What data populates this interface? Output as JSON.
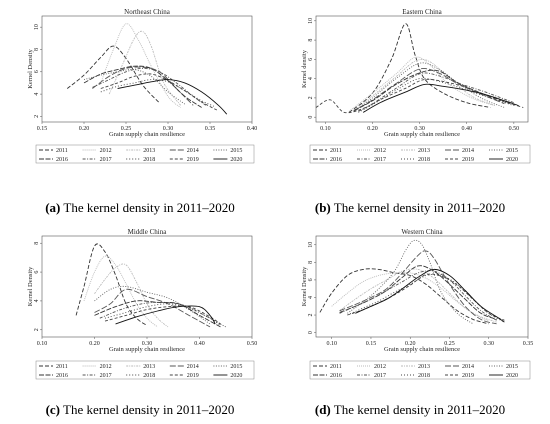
{
  "chart_data": [
    {
      "type": "line",
      "panel": "a",
      "title": "Northeast China",
      "xlabel": "Grain supply chain resilience",
      "ylabel": "Kernel Density",
      "xlim": [
        0.15,
        0.4
      ],
      "ylim": [
        1.5,
        11
      ],
      "xticks": [
        0.15,
        0.2,
        0.25,
        0.3,
        0.35,
        0.4
      ],
      "yticks": [
        2,
        4,
        6,
        8,
        10
      ],
      "caption": {
        "letter": "(a)",
        "text": " The kernel density in 2011–2020"
      },
      "series": [
        {
          "name": "2011",
          "x": [
            0.18,
            0.2,
            0.22,
            0.235,
            0.25,
            0.27,
            0.29
          ],
          "y": [
            4.5,
            5.7,
            7.3,
            8.3,
            7.2,
            4.8,
            3.2
          ]
        },
        {
          "name": "2012",
          "x": [
            0.22,
            0.235,
            0.25,
            0.265,
            0.28,
            0.3,
            0.315
          ],
          "y": [
            5.0,
            8.0,
            10.3,
            8.8,
            6.5,
            3.8,
            2.8
          ]
        },
        {
          "name": "2013",
          "x": [
            0.23,
            0.245,
            0.26,
            0.27,
            0.28,
            0.295,
            0.315
          ],
          "y": [
            4.0,
            6.5,
            9.0,
            9.6,
            8.3,
            5.0,
            3.0
          ]
        },
        {
          "name": "2014",
          "x": [
            0.21,
            0.23,
            0.25,
            0.27,
            0.29,
            0.31,
            0.33
          ],
          "y": [
            4.5,
            5.6,
            6.3,
            6.4,
            6.0,
            4.5,
            3.0
          ]
        },
        {
          "name": "2015",
          "x": [
            0.2,
            0.22,
            0.24,
            0.26,
            0.28,
            0.3,
            0.32
          ],
          "y": [
            5.3,
            5.7,
            6.0,
            6.2,
            5.6,
            4.2,
            3.1
          ]
        },
        {
          "name": "2016",
          "x": [
            0.2,
            0.22,
            0.24,
            0.26,
            0.28,
            0.3,
            0.32,
            0.34
          ],
          "y": [
            5.0,
            5.8,
            6.2,
            6.5,
            6.3,
            5.2,
            3.8,
            2.8
          ]
        },
        {
          "name": "2017",
          "x": [
            0.21,
            0.23,
            0.25,
            0.27,
            0.29,
            0.31,
            0.33,
            0.345
          ],
          "y": [
            4.6,
            5.3,
            6.0,
            6.3,
            6.0,
            5.0,
            3.8,
            3.0
          ]
        },
        {
          "name": "2018",
          "x": [
            0.22,
            0.24,
            0.26,
            0.28,
            0.3,
            0.32,
            0.34,
            0.355
          ],
          "y": [
            4.2,
            4.7,
            5.0,
            5.3,
            5.1,
            4.3,
            3.4,
            2.9
          ]
        },
        {
          "name": "2019",
          "x": [
            0.22,
            0.24,
            0.26,
            0.28,
            0.3,
            0.32,
            0.34,
            0.36
          ],
          "y": [
            4.5,
            5.0,
            5.6,
            5.8,
            5.2,
            4.3,
            3.3,
            2.5
          ]
        },
        {
          "name": "2020",
          "x": [
            0.24,
            0.26,
            0.28,
            0.3,
            0.32,
            0.34,
            0.36,
            0.37
          ],
          "y": [
            4.5,
            4.8,
            5.1,
            5.3,
            5.0,
            4.2,
            3.0,
            2.2
          ]
        }
      ]
    },
    {
      "type": "line",
      "panel": "b",
      "title": "Eastern China",
      "xlabel": "Grain supply chain resilience",
      "ylabel": "Kernel density",
      "xlim": [
        0.08,
        0.53
      ],
      "ylim": [
        -0.5,
        10.5
      ],
      "xticks": [
        0.1,
        0.2,
        0.3,
        0.4,
        0.5
      ],
      "yticks": [
        0,
        2,
        4,
        6,
        8,
        10
      ],
      "caption": {
        "letter": "(b)",
        "text": " The kernel density in 2011–2020"
      },
      "series": [
        {
          "name": "2011",
          "x": [
            0.15,
            0.2,
            0.24,
            0.27,
            0.29,
            0.31,
            0.35,
            0.4,
            0.45
          ],
          "y": [
            0.5,
            2.5,
            6.0,
            9.7,
            6.5,
            4.0,
            2.5,
            1.5,
            1.0
          ]
        },
        {
          "name": "2012",
          "x": [
            0.15,
            0.2,
            0.25,
            0.29,
            0.32,
            0.36,
            0.41,
            0.46
          ],
          "y": [
            0.6,
            2.5,
            4.5,
            6.2,
            5.5,
            3.5,
            2.0,
            1.2
          ]
        },
        {
          "name": "2013",
          "x": [
            0.16,
            0.2,
            0.25,
            0.29,
            0.32,
            0.36,
            0.41,
            0.46
          ],
          "y": [
            0.6,
            2.2,
            4.2,
            5.8,
            5.8,
            4.2,
            2.2,
            1.2
          ]
        },
        {
          "name": "2014",
          "x": [
            0.16,
            0.2,
            0.25,
            0.3,
            0.34,
            0.38,
            0.43,
            0.48
          ],
          "y": [
            0.6,
            1.8,
            3.5,
            5.0,
            4.6,
            3.5,
            2.4,
            1.4
          ]
        },
        {
          "name": "2015",
          "x": [
            0.16,
            0.2,
            0.25,
            0.3,
            0.34,
            0.38,
            0.43,
            0.48
          ],
          "y": [
            0.6,
            2.0,
            4.0,
            5.6,
            5.0,
            3.6,
            2.0,
            1.0
          ]
        },
        {
          "name": "2016",
          "x": [
            0.16,
            0.2,
            0.25,
            0.3,
            0.34,
            0.38,
            0.43,
            0.49
          ],
          "y": [
            0.7,
            1.7,
            3.4,
            4.6,
            4.8,
            3.6,
            2.5,
            1.5
          ]
        },
        {
          "name": "2017",
          "x": [
            0.17,
            0.2,
            0.25,
            0.3,
            0.34,
            0.39,
            0.44,
            0.5
          ],
          "y": [
            0.6,
            1.4,
            3.0,
            4.5,
            4.3,
            3.4,
            2.6,
            1.5
          ]
        },
        {
          "name": "2018",
          "x": [
            0.17,
            0.2,
            0.25,
            0.3,
            0.35,
            0.4,
            0.45,
            0.5
          ],
          "y": [
            0.5,
            1.3,
            2.8,
            4.0,
            3.6,
            2.8,
            2.0,
            1.2
          ]
        },
        {
          "name": "2019",
          "x": [
            0.08,
            0.11,
            0.14,
            0.18,
            0.22,
            0.27,
            0.31,
            0.36,
            0.41,
            0.46,
            0.52
          ],
          "y": [
            1.0,
            1.8,
            0.5,
            0.9,
            1.9,
            3.0,
            3.9,
            3.6,
            2.9,
            1.9,
            1.0
          ]
        },
        {
          "name": "2020",
          "x": [
            0.18,
            0.22,
            0.27,
            0.31,
            0.35,
            0.4,
            0.45,
            0.51
          ],
          "y": [
            0.5,
            1.6,
            2.6,
            3.4,
            3.2,
            2.8,
            2.2,
            1.2
          ]
        }
      ]
    },
    {
      "type": "line",
      "panel": "c",
      "title": "Middle China",
      "xlabel": "Grain supply chain resilience",
      "ylabel": "Kernel Density",
      "xlim": [
        0.1,
        0.5
      ],
      "ylim": [
        1.5,
        8.5
      ],
      "xticks": [
        0.1,
        0.2,
        0.3,
        0.4,
        0.5
      ],
      "yticks": [
        2,
        4,
        6,
        8
      ],
      "caption": {
        "letter": "(c)",
        "text": " The kernel density in 2011–2020"
      },
      "series": [
        {
          "name": "2011",
          "x": [
            0.165,
            0.18,
            0.2,
            0.22,
            0.24,
            0.26,
            0.28,
            0.3
          ],
          "y": [
            3.0,
            5.0,
            7.8,
            7.4,
            5.8,
            3.8,
            2.8,
            2.3
          ]
        },
        {
          "name": "2012",
          "x": [
            0.18,
            0.2,
            0.22,
            0.24,
            0.26,
            0.28,
            0.3,
            0.32
          ],
          "y": [
            4.0,
            6.0,
            7.1,
            6.5,
            5.2,
            3.8,
            2.8,
            2.2
          ]
        },
        {
          "name": "2013",
          "x": [
            0.2,
            0.22,
            0.24,
            0.26,
            0.28,
            0.3,
            0.32,
            0.34
          ],
          "y": [
            4.5,
            5.5,
            6.3,
            6.5,
            5.3,
            3.8,
            2.8,
            2.2
          ]
        },
        {
          "name": "2014",
          "x": [
            0.2,
            0.23,
            0.26,
            0.3,
            0.34,
            0.38,
            0.42
          ],
          "y": [
            3.2,
            3.8,
            4.8,
            4.3,
            3.8,
            3.0,
            2.2
          ]
        },
        {
          "name": "2015",
          "x": [
            0.2,
            0.23,
            0.26,
            0.3,
            0.34,
            0.38,
            0.42
          ],
          "y": [
            4.0,
            4.8,
            5.0,
            4.6,
            4.2,
            3.4,
            2.4
          ]
        },
        {
          "name": "2016",
          "x": [
            0.2,
            0.24,
            0.28,
            0.32,
            0.36,
            0.4,
            0.44
          ],
          "y": [
            3.0,
            3.6,
            4.0,
            3.9,
            3.8,
            3.0,
            2.2
          ]
        },
        {
          "name": "2017",
          "x": [
            0.21,
            0.25,
            0.29,
            0.33,
            0.37,
            0.41,
            0.45
          ],
          "y": [
            2.8,
            3.4,
            3.8,
            3.9,
            3.7,
            3.0,
            2.2
          ]
        },
        {
          "name": "2018",
          "x": [
            0.22,
            0.26,
            0.3,
            0.34,
            0.38,
            0.42,
            0.44
          ],
          "y": [
            2.8,
            3.2,
            3.6,
            3.8,
            3.5,
            2.8,
            2.3
          ]
        },
        {
          "name": "2019",
          "x": [
            0.22,
            0.26,
            0.3,
            0.34,
            0.38,
            0.42,
            0.44
          ],
          "y": [
            2.6,
            3.0,
            3.4,
            3.6,
            3.6,
            2.9,
            2.4
          ]
        },
        {
          "name": "2020",
          "x": [
            0.24,
            0.28,
            0.32,
            0.36,
            0.4,
            0.42,
            0.43
          ],
          "y": [
            2.4,
            2.9,
            3.3,
            3.6,
            3.6,
            3.0,
            2.4
          ]
        }
      ]
    },
    {
      "type": "line",
      "panel": "d",
      "title": "Western China",
      "xlabel": "Grain supply chain resilience",
      "ylabel": "Kernel Density",
      "xlim": [
        0.08,
        0.35
      ],
      "ylim": [
        -0.5,
        11
      ],
      "xticks": [
        0.1,
        0.15,
        0.2,
        0.25,
        0.3,
        0.35
      ],
      "yticks": [
        0,
        2,
        4,
        6,
        8,
        10
      ],
      "caption": {
        "letter": "(d)",
        "text": " The kernel density in 2011–2020"
      },
      "series": [
        {
          "name": "2011",
          "x": [
            0.085,
            0.1,
            0.12,
            0.14,
            0.16,
            0.18,
            0.2,
            0.22,
            0.24,
            0.26,
            0.28,
            0.3
          ],
          "y": [
            2.3,
            4.5,
            6.5,
            7.2,
            7.2,
            6.8,
            6.5,
            5.5,
            4.0,
            2.5,
            1.5,
            1.0
          ]
        },
        {
          "name": "2012",
          "x": [
            0.1,
            0.12,
            0.14,
            0.16,
            0.18,
            0.2,
            0.22,
            0.24,
            0.26,
            0.28,
            0.3
          ],
          "y": [
            3.0,
            4.5,
            5.8,
            6.5,
            6.8,
            6.8,
            6.2,
            5.0,
            3.5,
            2.2,
            1.3
          ]
        },
        {
          "name": "2013",
          "x": [
            0.11,
            0.13,
            0.15,
            0.17,
            0.19,
            0.21,
            0.23,
            0.25,
            0.27,
            0.29,
            0.31
          ],
          "y": [
            2.5,
            3.8,
            5.0,
            6.0,
            7.0,
            7.2,
            6.2,
            4.5,
            2.8,
            1.8,
            1.2
          ]
        },
        {
          "name": "2014",
          "x": [
            0.11,
            0.13,
            0.15,
            0.17,
            0.19,
            0.21,
            0.22,
            0.23,
            0.25,
            0.27,
            0.29,
            0.31
          ],
          "y": [
            2.5,
            3.2,
            4.0,
            5.0,
            6.8,
            8.8,
            9.3,
            8.5,
            5.5,
            3.0,
            1.5,
            1.0
          ]
        },
        {
          "name": "2015",
          "x": [
            0.12,
            0.14,
            0.16,
            0.18,
            0.195,
            0.205,
            0.215,
            0.225,
            0.24,
            0.26,
            0.28
          ],
          "y": [
            2.2,
            3.5,
            5.0,
            7.0,
            9.5,
            10.5,
            10.0,
            8.0,
            4.5,
            2.2,
            1.0
          ]
        },
        {
          "name": "2016",
          "x": [
            0.11,
            0.13,
            0.15,
            0.17,
            0.19,
            0.21,
            0.23,
            0.25,
            0.27,
            0.29,
            0.31
          ],
          "y": [
            2.3,
            3.0,
            3.8,
            4.8,
            6.3,
            7.6,
            7.0,
            5.5,
            3.8,
            2.2,
            1.5
          ]
        },
        {
          "name": "2017",
          "x": [
            0.11,
            0.13,
            0.15,
            0.17,
            0.19,
            0.21,
            0.23,
            0.25,
            0.27,
            0.29,
            0.31
          ],
          "y": [
            2.2,
            3.0,
            3.8,
            4.8,
            5.8,
            6.8,
            7.0,
            6.0,
            4.2,
            2.5,
            1.4
          ]
        },
        {
          "name": "2018",
          "x": [
            0.12,
            0.14,
            0.16,
            0.18,
            0.2,
            0.22,
            0.24,
            0.26,
            0.28,
            0.3,
            0.32
          ],
          "y": [
            2.0,
            2.8,
            3.6,
            4.6,
            5.5,
            6.5,
            6.5,
            5.5,
            3.8,
            2.2,
            1.2
          ]
        },
        {
          "name": "2019",
          "x": [
            0.12,
            0.14,
            0.16,
            0.18,
            0.2,
            0.22,
            0.24,
            0.26,
            0.28,
            0.3,
            0.32
          ],
          "y": [
            2.0,
            2.6,
            3.4,
            4.3,
            5.4,
            6.6,
            6.4,
            5.4,
            3.8,
            2.2,
            1.4
          ]
        },
        {
          "name": "2020",
          "x": [
            0.13,
            0.15,
            0.17,
            0.19,
            0.21,
            0.23,
            0.25,
            0.27,
            0.29,
            0.31,
            0.32
          ],
          "y": [
            2.2,
            3.0,
            3.8,
            5.0,
            6.3,
            7.2,
            6.5,
            4.8,
            3.0,
            1.8,
            1.2
          ]
        }
      ]
    }
  ],
  "styles": {
    "2011": {
      "color": "#333333",
      "dash": "4,2"
    },
    "2012": {
      "color": "#bbbbbb",
      "dash": "1,1"
    },
    "2013": {
      "color": "#bbbbbb",
      "dash": "2,1,1,1"
    },
    "2014": {
      "color": "#555555",
      "dash": "6,2"
    },
    "2015": {
      "color": "#666666",
      "dash": "1,1.5"
    },
    "2016": {
      "color": "#333333",
      "dash": "5,1.5"
    },
    "2017": {
      "color": "#555555",
      "dash": "3,1.5,1,1.5"
    },
    "2018": {
      "color": "#444444",
      "dash": "1,2"
    },
    "2019": {
      "color": "#444444",
      "dash": "3,2"
    },
    "2020": {
      "color": "#111111",
      "dash": ""
    }
  }
}
